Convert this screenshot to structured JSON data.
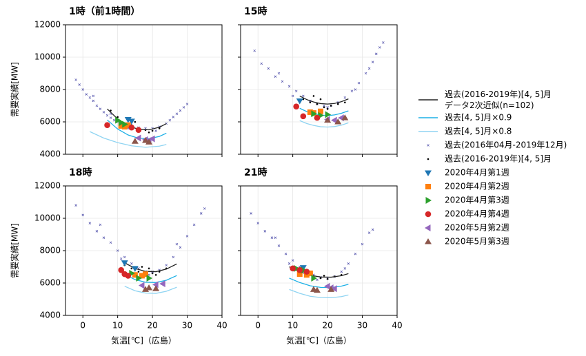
{
  "chart_data": [
    {
      "type": "scatter",
      "title": "1時（前1時間）",
      "ylabel": "需要実績[MW]",
      "xlim": [
        -5,
        40
      ],
      "ylim": [
        4000,
        12000
      ],
      "xticks": [
        0,
        10,
        20,
        30,
        40
      ],
      "yticks": [
        4000,
        6000,
        8000,
        10000,
        12000
      ],
      "grid": true,
      "xticklabels": false,
      "yticklabels": true,
      "series": [
        {
          "name": "過去(2016-2019年)[4, 5]月\nデータ2次近似(n=102)",
          "color": "#222222",
          "marker": "line",
          "x": [
            7,
            10,
            13,
            16,
            19,
            22,
            24
          ],
          "values": [
            6800,
            6180,
            5770,
            5540,
            5510,
            5670,
            5890
          ]
        },
        {
          "name": "過去[4, 5]月×0.9",
          "color": "#1cb0e6",
          "marker": "line",
          "x": [
            7,
            10,
            13,
            16,
            19,
            22,
            24
          ],
          "values": [
            6120,
            5560,
            5190,
            4990,
            4960,
            5100,
            5300
          ]
        },
        {
          "name": "過去[4, 5]月×0.8",
          "color": "#8fd4f2",
          "marker": "line",
          "x": [
            2,
            6,
            10,
            14,
            18,
            22,
            24
          ],
          "values": [
            5400,
            5000,
            4720,
            4520,
            4430,
            4500,
            4600
          ]
        },
        {
          "name": "過去(2016年04月-2019年12月)",
          "color": "#5b5bb0",
          "marker": "x",
          "x": [
            -2,
            -1,
            0,
            1,
            2,
            3,
            4,
            5,
            6,
            7,
            8,
            9,
            10,
            12,
            14,
            16,
            18,
            20,
            22,
            24,
            25,
            26,
            27,
            28,
            29,
            30,
            3,
            8,
            13,
            21
          ],
          "values": [
            8600,
            8300,
            8000,
            7700,
            7500,
            7300,
            7000,
            6800,
            6600,
            6400,
            6250,
            6100,
            6000,
            5850,
            5700,
            5650,
            5600,
            5600,
            5700,
            5900,
            6100,
            6300,
            6500,
            6700,
            6900,
            7100,
            7600,
            6500,
            5600,
            5450
          ]
        },
        {
          "name": "過去(2016-2019年)[4, 5]月",
          "color": "#000000",
          "marker": "dot",
          "x": [
            8,
            10,
            12,
            14,
            16,
            18,
            20,
            22,
            15,
            19
          ],
          "values": [
            6700,
            6300,
            5900,
            5800,
            5600,
            5500,
            5450,
            5600,
            6000,
            5350
          ]
        },
        {
          "name": "2020年4月第1週",
          "color": "#1f77b4",
          "marker": "v",
          "x": [
            13,
            14
          ],
          "values": [
            6150,
            6050
          ]
        },
        {
          "name": "2020年4月第2週",
          "color": "#ff7f0e",
          "marker": "s",
          "x": [
            11,
            12,
            13
          ],
          "values": [
            5750,
            5700,
            5800
          ]
        },
        {
          "name": "2020年4月第3週",
          "color": "#2ca02c",
          "marker": ">",
          "x": [
            10,
            11,
            12
          ],
          "values": [
            6100,
            5950,
            5850
          ]
        },
        {
          "name": "2020年4月第4週",
          "color": "#d62728",
          "marker": "o",
          "x": [
            7,
            14,
            16
          ],
          "values": [
            5800,
            5650,
            5500
          ]
        },
        {
          "name": "2020年5月第2週",
          "color": "#9467bd",
          "marker": "<",
          "x": [
            16,
            18,
            19,
            20
          ],
          "values": [
            5000,
            4900,
            4850,
            4950
          ]
        },
        {
          "name": "2020年5月第3週",
          "color": "#8c564b",
          "marker": "^",
          "x": [
            15,
            18,
            19
          ],
          "values": [
            4800,
            4850,
            4750
          ]
        }
      ]
    },
    {
      "type": "scatter",
      "title": "15時",
      "xlim": [
        -5,
        40
      ],
      "ylim": [
        4000,
        12000
      ],
      "xticks": [
        0,
        10,
        20,
        30,
        40
      ],
      "yticks": [
        4000,
        6000,
        8000,
        10000,
        12000
      ],
      "grid": true,
      "xticklabels": false,
      "yticklabels": false,
      "series": [
        {
          "color": "#222222",
          "marker": "line",
          "x": [
            12,
            14,
            16,
            18,
            20,
            22,
            24,
            26
          ],
          "values": [
            7600,
            7380,
            7230,
            7130,
            7100,
            7140,
            7250,
            7420
          ]
        },
        {
          "color": "#1cb0e6",
          "marker": "line",
          "x": [
            12,
            14,
            16,
            18,
            20,
            22,
            24,
            26
          ],
          "values": [
            6840,
            6640,
            6510,
            6420,
            6390,
            6430,
            6530,
            6680
          ]
        },
        {
          "color": "#8fd4f2",
          "marker": "line",
          "x": [
            12,
            14,
            16,
            18,
            20,
            22,
            24,
            26
          ],
          "values": [
            6080,
            5900,
            5780,
            5700,
            5680,
            5710,
            5800,
            5940
          ]
        },
        {
          "color": "#5b5bb0",
          "marker": "x",
          "x": [
            -1,
            1,
            3,
            5,
            7,
            9,
            11,
            13,
            15,
            17,
            19,
            21,
            23,
            25,
            27,
            29,
            31,
            33,
            34,
            35,
            36,
            6,
            10,
            20,
            28,
            32
          ],
          "values": [
            10400,
            9600,
            9300,
            8800,
            8500,
            8200,
            7900,
            7600,
            7300,
            7100,
            7000,
            7000,
            7200,
            7500,
            7900,
            8400,
            9000,
            9700,
            10200,
            10600,
            10900,
            9000,
            7600,
            6900,
            8000,
            9300
          ]
        },
        {
          "color": "#000000",
          "marker": "dot",
          "x": [
            13,
            15,
            17,
            19,
            21,
            23,
            25,
            18,
            20,
            16
          ],
          "values": [
            7400,
            7200,
            7100,
            6900,
            7000,
            7100,
            7200,
            7400,
            6800,
            7600
          ]
        },
        {
          "color": "#1f77b4",
          "marker": "v",
          "x": [
            12
          ],
          "values": [
            7300
          ]
        },
        {
          "color": "#ff7f0e",
          "marker": "s",
          "x": [
            15,
            16,
            18
          ],
          "values": [
            6600,
            6550,
            6650
          ]
        },
        {
          "color": "#2ca02c",
          "marker": ">",
          "x": [
            16,
            18,
            20
          ],
          "values": [
            6500,
            6400,
            6450
          ]
        },
        {
          "color": "#d62728",
          "marker": "o",
          "x": [
            11,
            13,
            17
          ],
          "values": [
            6950,
            6350,
            6250
          ]
        },
        {
          "color": "#9467bd",
          "marker": "<",
          "x": [
            20,
            22,
            24
          ],
          "values": [
            6150,
            6100,
            6250
          ]
        },
        {
          "color": "#8c564b",
          "marker": "^",
          "x": [
            20,
            23,
            25
          ],
          "values": [
            6100,
            6000,
            6250
          ]
        }
      ]
    },
    {
      "type": "scatter",
      "title": "18時",
      "xlabel": "気温[℃]（広島）",
      "ylabel": "需要実績[MW]",
      "xlim": [
        -5,
        40
      ],
      "ylim": [
        4000,
        12000
      ],
      "xticks": [
        0,
        10,
        20,
        30,
        40
      ],
      "yticks": [
        4000,
        6000,
        8000,
        10000,
        12000
      ],
      "grid": true,
      "xticklabels": true,
      "yticklabels": true,
      "series": [
        {
          "color": "#222222",
          "marker": "line",
          "x": [
            12,
            15,
            18,
            21,
            24,
            27
          ],
          "values": [
            7250,
            6900,
            6720,
            6700,
            6860,
            7180
          ]
        },
        {
          "color": "#1cb0e6",
          "marker": "line",
          "x": [
            12,
            15,
            18,
            21,
            24,
            27
          ],
          "values": [
            6530,
            6210,
            6050,
            6030,
            6170,
            6460
          ]
        },
        {
          "color": "#8fd4f2",
          "marker": "line",
          "x": [
            12,
            15,
            18,
            21,
            24,
            27
          ],
          "values": [
            5800,
            5520,
            5380,
            5360,
            5490,
            5740
          ]
        },
        {
          "color": "#5b5bb0",
          "marker": "x",
          "x": [
            -2,
            0,
            2,
            4,
            6,
            8,
            10,
            12,
            14,
            16,
            18,
            20,
            22,
            24,
            26,
            28,
            30,
            32,
            34,
            35,
            5,
            11,
            19,
            27
          ],
          "values": [
            10800,
            10200,
            9700,
            9200,
            8800,
            8500,
            8000,
            7600,
            7200,
            6900,
            6700,
            6700,
            6800,
            7100,
            7600,
            8200,
            8900,
            9600,
            10300,
            10600,
            9600,
            7500,
            6500,
            8400
          ]
        },
        {
          "color": "#000000",
          "marker": "dot",
          "x": [
            12,
            14,
            16,
            18,
            20,
            22,
            24,
            17,
            21,
            19
          ],
          "values": [
            7100,
            6900,
            6700,
            6600,
            6600,
            6700,
            6900,
            7000,
            6500,
            6900
          ]
        },
        {
          "color": "#1f77b4",
          "marker": "v",
          "x": [
            12,
            15
          ],
          "values": [
            7250,
            6900
          ]
        },
        {
          "color": "#ff7f0e",
          "marker": "s",
          "x": [
            15,
            17,
            18
          ],
          "values": [
            6500,
            6450,
            6550
          ]
        },
        {
          "color": "#2ca02c",
          "marker": ">",
          "x": [
            14,
            16,
            19
          ],
          "values": [
            6600,
            6300,
            6300
          ]
        },
        {
          "color": "#d62728",
          "marker": "o",
          "x": [
            11,
            12,
            13
          ],
          "values": [
            6800,
            6550,
            6450
          ]
        },
        {
          "color": "#9467bd",
          "marker": "<",
          "x": [
            17,
            21,
            23
          ],
          "values": [
            5850,
            5900,
            5950
          ]
        },
        {
          "color": "#8c564b",
          "marker": "^",
          "x": [
            18,
            21,
            19
          ],
          "values": [
            5600,
            5650,
            5700
          ]
        }
      ]
    },
    {
      "type": "scatter",
      "title": "21時",
      "xlabel": "気温[℃]（広島）",
      "xlim": [
        -5,
        40
      ],
      "ylim": [
        4000,
        12000
      ],
      "xticks": [
        0,
        10,
        20,
        30,
        40
      ],
      "yticks": [
        4000,
        6000,
        8000,
        10000,
        12000
      ],
      "grid": true,
      "xticklabels": true,
      "yticklabels": false,
      "series": [
        {
          "color": "#222222",
          "marker": "line",
          "x": [
            9,
            12,
            15,
            18,
            21,
            24,
            26
          ],
          "values": [
            7000,
            6700,
            6480,
            6370,
            6360,
            6450,
            6580
          ]
        },
        {
          "color": "#1cb0e6",
          "marker": "line",
          "x": [
            9,
            12,
            15,
            18,
            21,
            24,
            26
          ],
          "values": [
            6300,
            6030,
            5830,
            5730,
            5720,
            5810,
            5920
          ]
        },
        {
          "color": "#8fd4f2",
          "marker": "line",
          "x": [
            9,
            12,
            15,
            18,
            21,
            24,
            26
          ],
          "values": [
            5600,
            5360,
            5180,
            5100,
            5090,
            5160,
            5260
          ]
        },
        {
          "color": "#5b5bb0",
          "marker": "x",
          "x": [
            -2,
            0,
            2,
            4,
            6,
            8,
            10,
            12,
            14,
            16,
            18,
            20,
            22,
            24,
            26,
            28,
            30,
            32,
            33,
            5,
            9,
            17,
            25
          ],
          "values": [
            10300,
            9700,
            9200,
            8800,
            8300,
            7800,
            7400,
            7000,
            6700,
            6500,
            6350,
            6300,
            6400,
            6700,
            7200,
            7800,
            8400,
            9100,
            9300,
            8800,
            7200,
            6200,
            6900
          ]
        },
        {
          "color": "#000000",
          "marker": "dot",
          "x": [
            10,
            12,
            14,
            16,
            18,
            20,
            22,
            24,
            19,
            15
          ],
          "values": [
            6900,
            6700,
            6500,
            6400,
            6300,
            6250,
            6400,
            6500,
            6450,
            6600
          ]
        },
        {
          "color": "#1f77b4",
          "marker": "v",
          "x": [
            13
          ],
          "values": [
            6950
          ]
        },
        {
          "color": "#ff7f0e",
          "marker": "s",
          "x": [
            12,
            14,
            15
          ],
          "values": [
            6550,
            6500,
            6600
          ]
        },
        {
          "color": "#2ca02c",
          "marker": ">",
          "x": [
            11,
            13,
            16
          ],
          "values": [
            6900,
            6800,
            6300
          ]
        },
        {
          "color": "#d62728",
          "marker": "o",
          "x": [
            10,
            12,
            14
          ],
          "values": [
            6900,
            6800,
            6700
          ]
        },
        {
          "color": "#9467bd",
          "marker": "<",
          "x": [
            20,
            21,
            22
          ],
          "values": [
            5800,
            5700,
            5650
          ]
        },
        {
          "color": "#8c564b",
          "marker": "^",
          "x": [
            16,
            17,
            21
          ],
          "values": [
            5600,
            5550,
            5600
          ]
        }
      ]
    }
  ]
}
